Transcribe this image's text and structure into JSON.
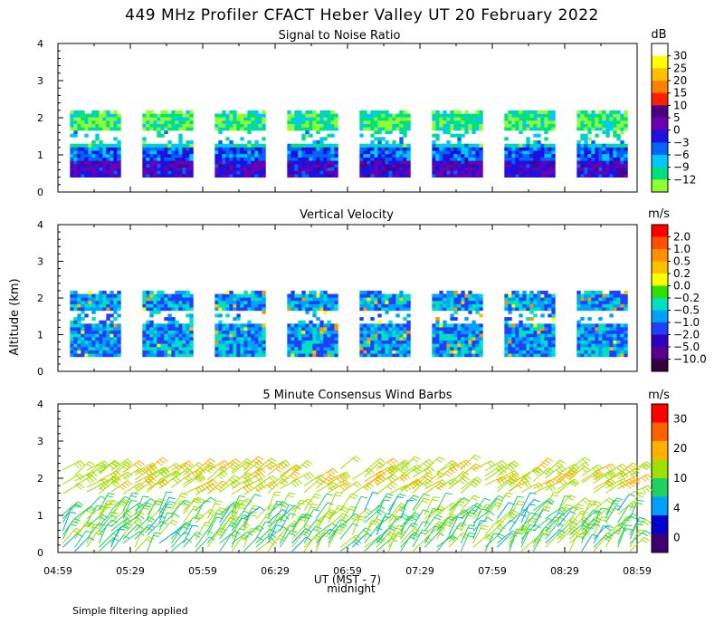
{
  "title": "449 MHz Profiler CFACT Heber Valley UT 20 February 2022",
  "y_axis_label": "Altitude (km)",
  "x_axis_label": "UT  (MST - 7)",
  "midnight_label": "midnight",
  "footnote": "Simple filtering applied",
  "x_ticks": [
    "04:59",
    "05:29",
    "05:59",
    "06:29",
    "06:59",
    "07:29",
    "07:59",
    "08:29",
    "08:59"
  ],
  "y_ticks": [
    "0",
    "1",
    "2",
    "3",
    "4"
  ],
  "panels": [
    {
      "id": "snr",
      "title": "Signal to Noise Ratio",
      "unit": "dB",
      "colorbar_labels": [
        "30",
        "25",
        "20",
        "15",
        "10",
        "5",
        "0",
        "−3",
        "−6",
        "−9",
        "−12"
      ],
      "colors": [
        "#ffffff",
        "#ffff00",
        "#ffc000",
        "#ff8000",
        "#ff2000",
        "#4b0082",
        "#6a00b0",
        "#1e10e0",
        "#0064ff",
        "#00c8ff",
        "#00e080",
        "#90ff30"
      ]
    },
    {
      "id": "vv",
      "title": "Vertical Velocity",
      "unit": "m/s",
      "colorbar_labels": [
        "2.0",
        "1.0",
        "0.5",
        "0.2",
        "0.0",
        "−0.2",
        "−0.5",
        "−1.0",
        "−2.0",
        "−5.0",
        "−10.0"
      ],
      "colors": [
        "#ff0000",
        "#ff5000",
        "#ff9000",
        "#ffc000",
        "#ffff00",
        "#30e000",
        "#00e0c0",
        "#00a0ff",
        "#2040ff",
        "#3000c0",
        "#5a0090",
        "#300040"
      ]
    },
    {
      "id": "wind",
      "title": "5 Minute Consensus Wind Barbs",
      "unit": "m/s",
      "colorbar_labels": [
        "30",
        "20",
        "10",
        "4",
        "0"
      ],
      "colors": [
        "#ff0000",
        "#ff6000",
        "#ffb000",
        "#a0e000",
        "#20d060",
        "#00a0ff",
        "#0000d0",
        "#400070"
      ]
    }
  ],
  "chart_data": [
    {
      "type": "heatmap",
      "title": "Signal to Noise Ratio",
      "xlabel": "UT  (MST - 7)",
      "ylabel": "Altitude (km)",
      "x_range": [
        "04:59",
        "08:59"
      ],
      "ylim": [
        0,
        4
      ],
      "colorbar": {
        "unit": "dB",
        "levels": [
          30,
          25,
          20,
          15,
          10,
          5,
          0,
          -3,
          -6,
          -9,
          -12
        ]
      },
      "data_altitude_km": [
        0.4,
        2.2
      ],
      "blocks": [
        {
          "start": "05:04",
          "end": "05:25",
          "lower_gate_top_km": 1.3
        },
        {
          "start": "05:34",
          "end": "05:55",
          "lower_gate_top_km": 1.3
        },
        {
          "start": "06:04",
          "end": "06:25",
          "lower_gate_top_km": 1.3
        },
        {
          "start": "06:34",
          "end": "06:55",
          "lower_gate_top_km": 1.3
        },
        {
          "start": "07:04",
          "end": "07:25",
          "lower_gate_top_km": 1.3
        },
        {
          "start": "07:34",
          "end": "07:55",
          "lower_gate_top_km": 1.3
        },
        {
          "start": "08:04",
          "end": "08:25",
          "lower_gate_top_km": 1.3
        },
        {
          "start": "08:34",
          "end": "08:55",
          "lower_gate_top_km": 1.3
        }
      ]
    },
    {
      "type": "heatmap",
      "title": "Vertical Velocity",
      "xlabel": "UT  (MST - 7)",
      "ylabel": "Altitude (km)",
      "x_range": [
        "04:59",
        "08:59"
      ],
      "ylim": [
        0,
        4
      ],
      "colorbar": {
        "unit": "m/s",
        "levels": [
          2.0,
          1.0,
          0.5,
          0.2,
          0.0,
          -0.2,
          -0.5,
          -1.0,
          -2.0,
          -5.0,
          -10.0
        ]
      },
      "data_altitude_km": [
        0.4,
        2.2
      ],
      "blocks": [
        {
          "start": "05:04",
          "end": "05:25"
        },
        {
          "start": "05:34",
          "end": "05:55"
        },
        {
          "start": "06:04",
          "end": "06:25"
        },
        {
          "start": "06:34",
          "end": "06:55"
        },
        {
          "start": "07:04",
          "end": "07:25"
        },
        {
          "start": "07:34",
          "end": "07:55"
        },
        {
          "start": "08:04",
          "end": "08:25"
        },
        {
          "start": "08:34",
          "end": "08:55"
        }
      ]
    },
    {
      "type": "scatter",
      "title": "5 Minute Consensus Wind Barbs",
      "xlabel": "UT  (MST - 7)",
      "ylabel": "Altitude (km)",
      "x_range": [
        "04:59",
        "08:59"
      ],
      "ylim": [
        0,
        4
      ],
      "colorbar": {
        "unit": "m/s",
        "levels": [
          30,
          20,
          10,
          4,
          0
        ]
      },
      "upper_layer_km": [
        1.6,
        2.3
      ],
      "lower_layer_km": [
        0.0,
        1.2
      ],
      "typical_speed_upper_ms": 12,
      "typical_speed_lower_ms": 8
    }
  ]
}
